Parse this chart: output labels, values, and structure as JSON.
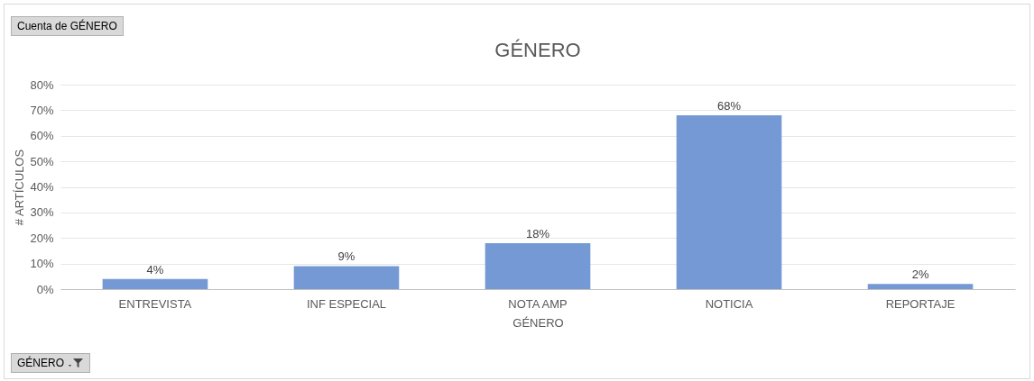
{
  "chart_data": {
    "type": "bar",
    "title": "GÉNERO",
    "xlabel": "GÉNERO",
    "ylabel": "# ARTÍCULOS",
    "categories": [
      "ENTREVISTA",
      "INF ESPECIAL",
      "NOTA AMP",
      "NOTICIA",
      "REPORTAJE"
    ],
    "values": [
      4,
      9,
      18,
      68,
      2
    ],
    "color": "#7499d4",
    "value_labels": [
      "4%",
      "9%",
      "18%",
      "68%",
      "2%"
    ],
    "ylim": [
      0,
      80
    ],
    "yticks": [
      {
        "value": 0,
        "label": "0%"
      },
      {
        "value": 10,
        "label": "10%"
      },
      {
        "value": 20,
        "label": "20%"
      },
      {
        "value": 30,
        "label": "30%"
      },
      {
        "value": 40,
        "label": "40%"
      },
      {
        "value": 50,
        "label": "50%"
      },
      {
        "value": 60,
        "label": "60%"
      },
      {
        "value": 70,
        "label": "70%"
      },
      {
        "value": 80,
        "label": "80%"
      }
    ],
    "grid": "y",
    "annotations": [
      "Cuenta de GÉNERO",
      "GÉNERO"
    ]
  }
}
